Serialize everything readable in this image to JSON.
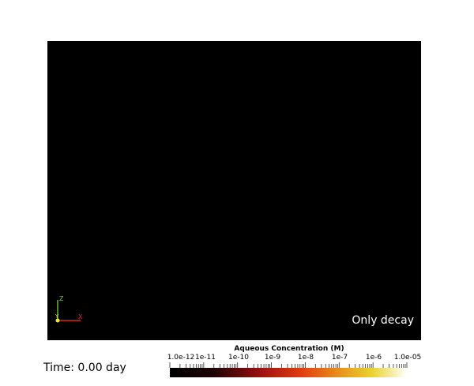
{
  "overlay": {
    "text": "Only decay"
  },
  "time": {
    "label": "Time: 0.00 day"
  },
  "axes": {
    "x_label": "X",
    "y_label": "Y",
    "z_label": "Z"
  },
  "colors": {
    "viewport_bg": "#000000",
    "x_axis": "#d9262b",
    "y_axis": "#e8e83a",
    "z_axis": "#7ac143"
  },
  "colorbar": {
    "title": "Aqueous Concentration (M)",
    "scale": "log",
    "range": [
      "1.0e-12",
      "1.0e-05"
    ],
    "colormap": "black-body",
    "tick_labels": [
      "1.0e-12",
      "1e-11",
      "1e-10",
      "1e-9",
      "1e-8",
      "1e-7",
      "1e-6",
      "1.0e-05"
    ]
  }
}
